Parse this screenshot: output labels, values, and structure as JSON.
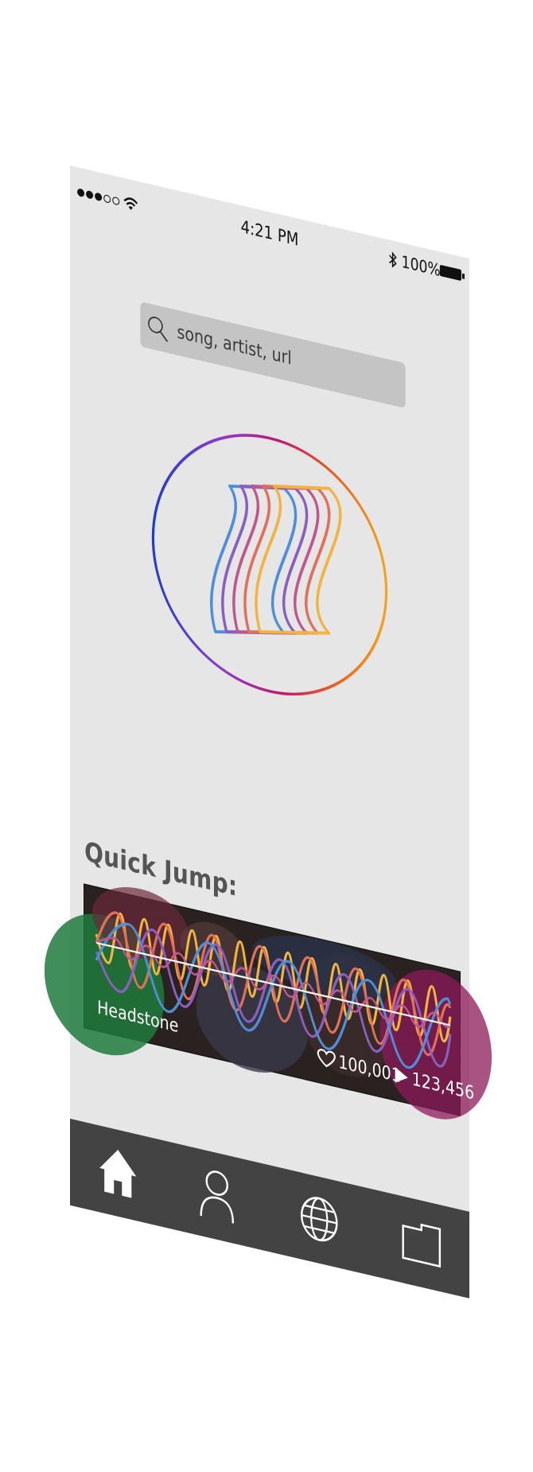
{
  "status_bar": {
    "signal_bars": 5,
    "signal_filled": 3,
    "time": "4:21 PM",
    "battery_percent": "100%",
    "icons": [
      "signal-dots-icon",
      "wifi-icon",
      "bluetooth-icon",
      "battery-icon"
    ]
  },
  "search": {
    "placeholder": "song, artist, url",
    "value": "",
    "icon": "search-icon"
  },
  "logo": {
    "icon": "sound-wave-s-logo-icon",
    "ring_colors": [
      "#1f3fbf",
      "#8a3ad0",
      "#c2186f",
      "#e8611d",
      "#f3a51e"
    ],
    "stroke_colors": [
      "#4f8fd8",
      "#8a5fc0",
      "#c1568f",
      "#e0705a",
      "#f3b43f"
    ]
  },
  "quick_jump": {
    "title": "Quick Jump:",
    "cards": [
      {
        "title": "Headstone",
        "likes": "100,001",
        "plays": "123,456",
        "like_icon": "heart-icon",
        "play_icon": "play-icon"
      }
    ]
  },
  "tab_bar": {
    "active": "home",
    "tabs": [
      {
        "id": "home",
        "icon": "home-icon"
      },
      {
        "id": "profile",
        "icon": "user-icon"
      },
      {
        "id": "explore",
        "icon": "globe-icon"
      },
      {
        "id": "library",
        "icon": "folder-icon"
      }
    ],
    "background": "#434343"
  },
  "colors": {
    "screen_background": "#e6e6e6",
    "search_field": "#c4c4c4",
    "section_title": "#555555"
  }
}
